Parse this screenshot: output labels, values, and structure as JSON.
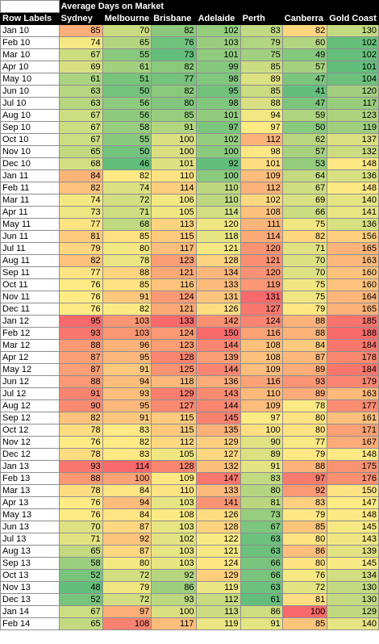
{
  "chart_data": {
    "type": "heatmap",
    "title": "Average Days on Market",
    "row_header": "Row Labels",
    "columns": [
      "Sydney",
      "Melbourne",
      "Brisbane",
      "Adelaide",
      "Perth",
      "Canberra",
      "Gold Coast"
    ],
    "rows": [
      {
        "label": "Jan 10",
        "values": [
          85,
          70,
          82,
          102,
          83,
          82,
          130
        ]
      },
      {
        "label": "Feb 10",
        "values": [
          74,
          65,
          76,
          103,
          79,
          60,
          102
        ]
      },
      {
        "label": "Mar 10",
        "values": [
          67,
          55,
          73,
          101,
          75,
          49,
          102
        ]
      },
      {
        "label": "Apr 10",
        "values": [
          69,
          61,
          82,
          99,
          85,
          57,
          101
        ]
      },
      {
        "label": "May 10",
        "values": [
          61,
          51,
          77,
          98,
          89,
          47,
          104
        ]
      },
      {
        "label": "Jun 10",
        "values": [
          63,
          50,
          82,
          95,
          85,
          41,
          120
        ]
      },
      {
        "label": "Jul 10",
        "values": [
          63,
          56,
          80,
          98,
          88,
          47,
          117
        ]
      },
      {
        "label": "Aug 10",
        "values": [
          67,
          56,
          85,
          101,
          94,
          59,
          123
        ]
      },
      {
        "label": "Sep 10",
        "values": [
          67,
          58,
          91,
          97,
          97,
          50,
          119
        ]
      },
      {
        "label": "Oct 10",
        "values": [
          67,
          55,
          100,
          102,
          112,
          62,
          137
        ]
      },
      {
        "label": "Nov 10",
        "values": [
          65,
          50,
          100,
          100,
          98,
          57,
          132
        ]
      },
      {
        "label": "Dec 10",
        "values": [
          68,
          46,
          101,
          92,
          101,
          53,
          148
        ]
      },
      {
        "label": "Jan 11",
        "values": [
          84,
          82,
          110,
          100,
          109,
          64,
          136
        ]
      },
      {
        "label": "Feb 11",
        "values": [
          82,
          74,
          114,
          110,
          112,
          67,
          148
        ]
      },
      {
        "label": "Mar 11",
        "values": [
          74,
          72,
          106,
          110,
          102,
          69,
          140
        ]
      },
      {
        "label": "Apr 11",
        "values": [
          73,
          71,
          105,
          114,
          108,
          66,
          141
        ]
      },
      {
        "label": "May 11",
        "values": [
          77,
          68,
          113,
          120,
          111,
          75,
          136
        ]
      },
      {
        "label": "Jun 11",
        "values": [
          81,
          85,
          115,
          118,
          114,
          82,
          156
        ]
      },
      {
        "label": "Jul 11",
        "values": [
          79,
          80,
          117,
          121,
          120,
          71,
          165
        ]
      },
      {
        "label": "Aug 11",
        "values": [
          82,
          78,
          123,
          128,
          121,
          70,
          163
        ]
      },
      {
        "label": "Sep 11",
        "values": [
          77,
          88,
          121,
          134,
          120,
          70,
          160
        ]
      },
      {
        "label": "Oct 11",
        "values": [
          76,
          85,
          116,
          133,
          119,
          75,
          160
        ]
      },
      {
        "label": "Nov 11",
        "values": [
          76,
          91,
          124,
          131,
          131,
          75,
          164
        ]
      },
      {
        "label": "Dec 11",
        "values": [
          76,
          82,
          121,
          126,
          127,
          79,
          165
        ]
      },
      {
        "label": "Jan 12",
        "values": [
          95,
          103,
          133,
          142,
          124,
          88,
          185
        ]
      },
      {
        "label": "Feb 12",
        "values": [
          93,
          103,
          124,
          150,
          116,
          88,
          188
        ]
      },
      {
        "label": "Mar 12",
        "values": [
          88,
          96,
          123,
          144,
          108,
          84,
          184
        ]
      },
      {
        "label": "Apr 12",
        "values": [
          87,
          95,
          128,
          139,
          108,
          87,
          178
        ]
      },
      {
        "label": "May 12",
        "values": [
          87,
          91,
          125,
          144,
          109,
          89,
          184
        ]
      },
      {
        "label": "Jun 12",
        "values": [
          88,
          94,
          118,
          136,
          116,
          93,
          179
        ]
      },
      {
        "label": "Jul 12",
        "values": [
          91,
          93,
          129,
          143,
          110,
          89,
          163
        ]
      },
      {
        "label": "Aug 12",
        "values": [
          90,
          95,
          127,
          144,
          109,
          78,
          177
        ]
      },
      {
        "label": "Sep 12",
        "values": [
          82,
          91,
          115,
          145,
          97,
          80,
          161
        ]
      },
      {
        "label": "Oct 12",
        "values": [
          78,
          83,
          115,
          135,
          100,
          80,
          171
        ]
      },
      {
        "label": "Nov 12",
        "values": [
          76,
          82,
          112,
          129,
          90,
          77,
          167
        ]
      },
      {
        "label": "Dec 12",
        "values": [
          78,
          83,
          105,
          127,
          89,
          79,
          148
        ]
      },
      {
        "label": "Jan 13",
        "values": [
          93,
          114,
          128,
          132,
          91,
          88,
          175
        ]
      },
      {
        "label": "Feb 13",
        "values": [
          88,
          100,
          109,
          147,
          83,
          97,
          176
        ]
      },
      {
        "label": "Mar 13",
        "values": [
          78,
          84,
          110,
          133,
          80,
          92,
          150
        ]
      },
      {
        "label": "Apr 13",
        "values": [
          76,
          94,
          103,
          141,
          81,
          83,
          147
        ]
      },
      {
        "label": "May 13",
        "values": [
          76,
          84,
          108,
          126,
          73,
          79,
          148
        ]
      },
      {
        "label": "Jun 13",
        "values": [
          70,
          87,
          103,
          128,
          67,
          85,
          145
        ]
      },
      {
        "label": "Jul 13",
        "values": [
          71,
          92,
          102,
          122,
          63,
          80,
          143
        ]
      },
      {
        "label": "Aug 13",
        "values": [
          65,
          87,
          103,
          121,
          63,
          86,
          139
        ]
      },
      {
        "label": "Sep 13",
        "values": [
          58,
          80,
          103,
          124,
          66,
          80,
          145
        ]
      },
      {
        "label": "Oct 13",
        "values": [
          52,
          72,
          92,
          129,
          66,
          76,
          134
        ]
      },
      {
        "label": "Nov 13",
        "values": [
          48,
          79,
          86,
          119,
          63,
          72,
          130
        ]
      },
      {
        "label": "Dec 13",
        "values": [
          52,
          72,
          93,
          112,
          61,
          81,
          130
        ]
      },
      {
        "label": "Jan 14",
        "values": [
          67,
          97,
          100,
          113,
          86,
          100,
          129
        ]
      },
      {
        "label": "Feb 14",
        "values": [
          65,
          108,
          117,
          119,
          91,
          85,
          140
        ]
      }
    ],
    "color_scale": {
      "low": "#63be7b",
      "mid": "#ffeb84",
      "high": "#f8696b"
    }
  }
}
